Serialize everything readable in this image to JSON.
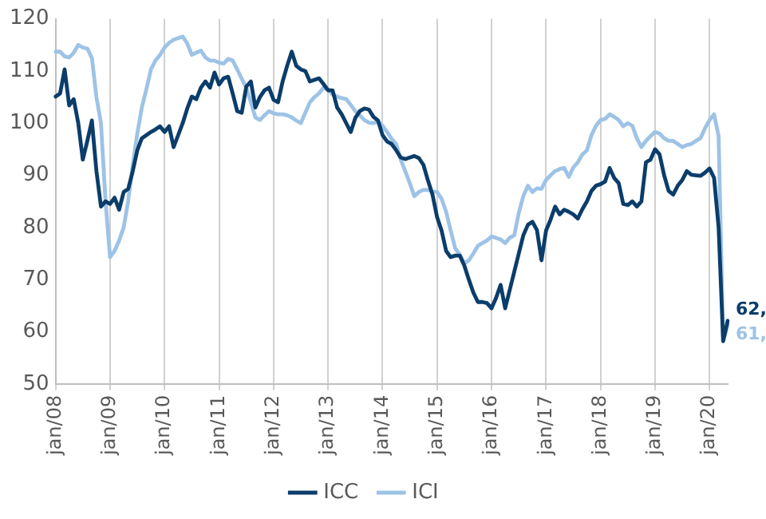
{
  "chart_data": {
    "type": "line",
    "categories": [
      "jan/08",
      null,
      null,
      null,
      null,
      null,
      null,
      null,
      null,
      null,
      null,
      null,
      "jan/09",
      null,
      null,
      null,
      null,
      null,
      null,
      null,
      null,
      null,
      null,
      null,
      "jan/10",
      null,
      null,
      null,
      null,
      null,
      null,
      null,
      null,
      null,
      null,
      null,
      "jan/11",
      null,
      null,
      null,
      null,
      null,
      null,
      null,
      null,
      null,
      null,
      null,
      "jan/12",
      null,
      null,
      null,
      null,
      null,
      null,
      null,
      null,
      null,
      null,
      null,
      "jan/13",
      null,
      null,
      null,
      null,
      null,
      null,
      null,
      null,
      null,
      null,
      null,
      "jan/14",
      null,
      null,
      null,
      null,
      null,
      null,
      null,
      null,
      null,
      null,
      null,
      "jan/15",
      null,
      null,
      null,
      null,
      null,
      null,
      null,
      null,
      null,
      null,
      null,
      "jan/16",
      null,
      null,
      null,
      null,
      null,
      null,
      null,
      null,
      null,
      null,
      null,
      "jan/17",
      null,
      null,
      null,
      null,
      null,
      null,
      null,
      null,
      null,
      null,
      null,
      "jan/18",
      null,
      null,
      null,
      null,
      null,
      null,
      null,
      null,
      null,
      null,
      null,
      "jan/19",
      null,
      null,
      null,
      null,
      null,
      null,
      null,
      null,
      null,
      null,
      null,
      "jan/20",
      null,
      null,
      null,
      null
    ],
    "series": [
      {
        "name": "ICC",
        "color": "#0b3d6b",
        "values": [
          105.1,
          105.7,
          110.3,
          103.4,
          104.6,
          100,
          93,
          96.6,
          100.5,
          90.8,
          84,
          85,
          84.5,
          85.7,
          83.4,
          86.8,
          87.4,
          90.8,
          94.8,
          97.1,
          97.7,
          98.3,
          98.8,
          99.4,
          98.3,
          99.4,
          95.4,
          97.7,
          100,
          102.8,
          105.1,
          104.6,
          106.8,
          108,
          106.8,
          109.7,
          107.4,
          108.6,
          108.9,
          105.7,
          102.3,
          102,
          107,
          108,
          103,
          105,
          106.3,
          106.8,
          104.5,
          104,
          108,
          111,
          113.7,
          111,
          110.3,
          110,
          108,
          108.3,
          108.6,
          107.5,
          106.3,
          106.3,
          103,
          101.7,
          100,
          98.3,
          101,
          102.3,
          102.8,
          102.6,
          101.2,
          100.5,
          97.7,
          96.5,
          96,
          94.8,
          93.4,
          93.1,
          93.4,
          93.7,
          93.3,
          92,
          89,
          86.3,
          82,
          79.4,
          75.5,
          74.3,
          74.6,
          74.6,
          72.7,
          70,
          67.5,
          65.7,
          65.7,
          65.5,
          64.5,
          66.5,
          69,
          64.5,
          68,
          71.5,
          75,
          78.5,
          80.5,
          81.1,
          79.5,
          73.7,
          79.4,
          81.5,
          84,
          82.5,
          83.4,
          83,
          82.5,
          81.7,
          83.5,
          85,
          87,
          88,
          88.3,
          88.8,
          91.4,
          89.5,
          88.5,
          84.5,
          84.3,
          85,
          84,
          85,
          92.5,
          93,
          95,
          94,
          90,
          87,
          86.3,
          88,
          89.1,
          90.8,
          90.1,
          90,
          89.9,
          90.5,
          91.3,
          89.5,
          80,
          58.2,
          62.1
        ],
        "value_labels": [
          null,
          null,
          null,
          null,
          null,
          null,
          null,
          null,
          null,
          null,
          null,
          null,
          null,
          null,
          null,
          null,
          null,
          null,
          null,
          null,
          null,
          null,
          null,
          null,
          null,
          null,
          null,
          null,
          null,
          null,
          null,
          null,
          null,
          null,
          null,
          null,
          null,
          null,
          null,
          null,
          null,
          null,
          null,
          null,
          null,
          null,
          null,
          null,
          null,
          null,
          null,
          null,
          null,
          null,
          null,
          null,
          null,
          null,
          null,
          null,
          null,
          null,
          null,
          null,
          null,
          null,
          null,
          null,
          null,
          null,
          null,
          null,
          null,
          null,
          null,
          null,
          null,
          null,
          null,
          null,
          null,
          null,
          null,
          null,
          null,
          null,
          null,
          null,
          null,
          null,
          null,
          null,
          null,
          null,
          null,
          null,
          null,
          null,
          null,
          null,
          null,
          null,
          null,
          null,
          null,
          null,
          null,
          null,
          null,
          null,
          null,
          null,
          null,
          null,
          null,
          null,
          null,
          null,
          null,
          null,
          null,
          null,
          null,
          null,
          null,
          null,
          null,
          null,
          null,
          null,
          null,
          null,
          null,
          null,
          null,
          null,
          null,
          null,
          null,
          null,
          null,
          null,
          null,
          null,
          null,
          null,
          null,
          null,
          "62,"
        ]
      },
      {
        "name": "ICI",
        "color": "#9dc3e6",
        "values": [
          113.7,
          113.7,
          112.8,
          112.6,
          113.5,
          115,
          114.5,
          114.3,
          112.5,
          105,
          100,
          85.1,
          74.3,
          75.5,
          77.5,
          80,
          85.1,
          92,
          98,
          103,
          106.5,
          110.3,
          112,
          113.1,
          114.5,
          115.4,
          116,
          116.3,
          116.6,
          115.3,
          113.1,
          113.5,
          113.9,
          112.6,
          112,
          112,
          111.6,
          111.4,
          112.3,
          112,
          110.3,
          108.5,
          106.8,
          104,
          101.1,
          100.6,
          101.5,
          102.3,
          101.9,
          101.7,
          101.7,
          101.5,
          101.1,
          100.5,
          100,
          102,
          104,
          105,
          105.7,
          106.8,
          106.5,
          105.5,
          105.1,
          104.8,
          104.6,
          103.5,
          102.3,
          101.5,
          100.6,
          100.1,
          100,
          100.3,
          99.5,
          98.3,
          97,
          96,
          93,
          90.8,
          88.5,
          86,
          86.8,
          87.2,
          87.2,
          86.9,
          86.8,
          85.5,
          83,
          79.4,
          76,
          74.8,
          73.1,
          73.7,
          75,
          76.5,
          77,
          77.5,
          78.3,
          78,
          77.7,
          77,
          78,
          78.5,
          82.8,
          86,
          88,
          86.8,
          87.5,
          87.4,
          89.1,
          90,
          90.8,
          91.2,
          91.4,
          89.7,
          91.5,
          92.5,
          94,
          94.8,
          97.7,
          99.5,
          100.6,
          100.8,
          101.7,
          101.2,
          100.6,
          99.4,
          100,
          99.5,
          97.1,
          95.4,
          96.6,
          97.5,
          98.3,
          98,
          97.1,
          96.6,
          96.6,
          96,
          95.4,
          95.8,
          96,
          96.6,
          97.1,
          99,
          100.6,
          101.7,
          97.5,
          58.2,
          61.4
        ],
        "value_labels": [
          null,
          null,
          null,
          null,
          null,
          null,
          null,
          null,
          null,
          null,
          null,
          null,
          null,
          null,
          null,
          null,
          null,
          null,
          null,
          null,
          null,
          null,
          null,
          null,
          null,
          null,
          null,
          null,
          null,
          null,
          null,
          null,
          null,
          null,
          null,
          null,
          null,
          null,
          null,
          null,
          null,
          null,
          null,
          null,
          null,
          null,
          null,
          null,
          null,
          null,
          null,
          null,
          null,
          null,
          null,
          null,
          null,
          null,
          null,
          null,
          null,
          null,
          null,
          null,
          null,
          null,
          null,
          null,
          null,
          null,
          null,
          null,
          null,
          null,
          null,
          null,
          null,
          null,
          null,
          null,
          null,
          null,
          null,
          null,
          null,
          null,
          null,
          null,
          null,
          null,
          null,
          null,
          null,
          null,
          null,
          null,
          null,
          null,
          null,
          null,
          null,
          null,
          null,
          null,
          null,
          null,
          null,
          null,
          null,
          null,
          null,
          null,
          null,
          null,
          null,
          null,
          null,
          null,
          null,
          null,
          null,
          null,
          null,
          null,
          null,
          null,
          null,
          null,
          null,
          null,
          null,
          null,
          null,
          null,
          null,
          null,
          null,
          null,
          null,
          null,
          null,
          null,
          null,
          null,
          null,
          null,
          null,
          null,
          "61,"
        ]
      }
    ],
    "ylim": [
      50,
      120
    ],
    "yticks": [
      50,
      60,
      70,
      80,
      90,
      100,
      110,
      120
    ],
    "grid": "x",
    "legend": "bottom",
    "marker": "none",
    "line_style": "solid"
  }
}
